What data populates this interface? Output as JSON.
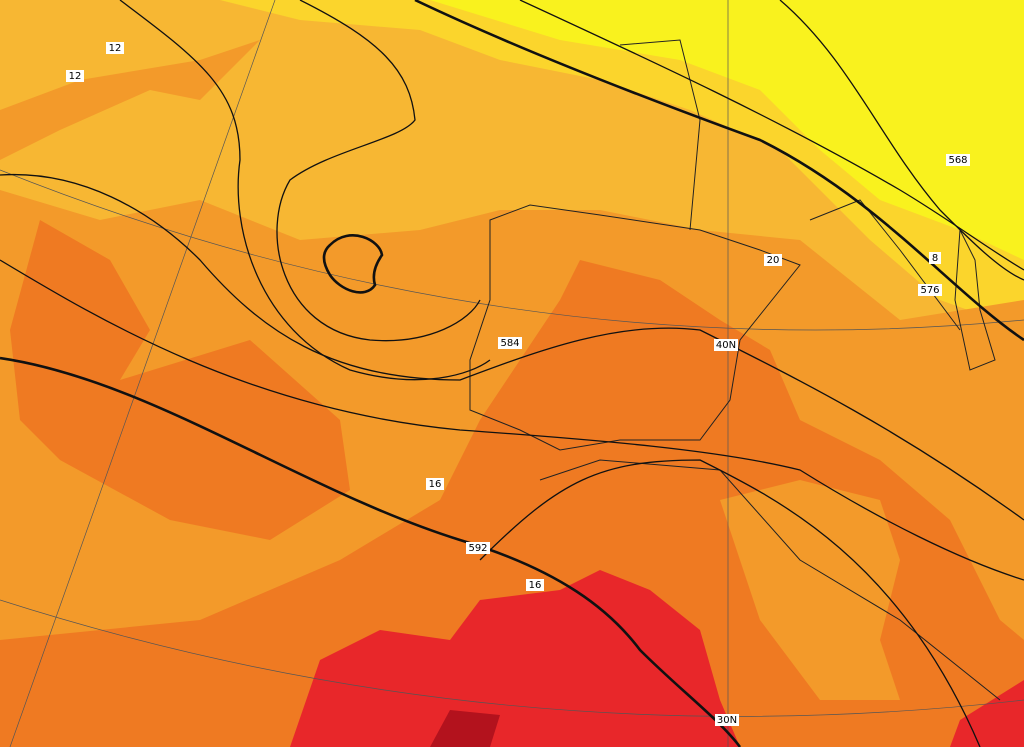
{
  "contour_labels": [
    "12",
    "12",
    "568",
    "8",
    "576",
    "20",
    "584",
    "16",
    "592",
    "16"
  ],
  "graticule_labels": [
    "40N",
    "30N"
  ]
}
